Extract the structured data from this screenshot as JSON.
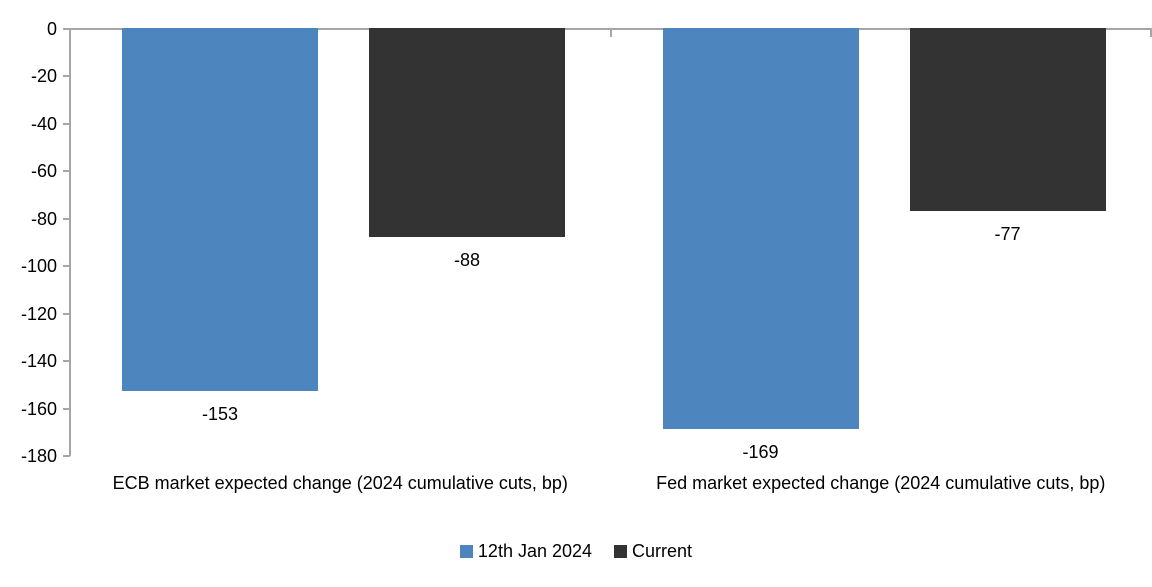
{
  "chart_data": {
    "type": "bar",
    "title": "",
    "categories": [
      "ECB market expected change (2024 cumulative cuts, bp)",
      "Fed market expected change (2024 cumulative cuts, bp)"
    ],
    "series": [
      {
        "name": "12th Jan 2024",
        "color": "#4D86BE",
        "values": [
          -153,
          -169
        ]
      },
      {
        "name": "Current",
        "color": "#333333",
        "values": [
          -88,
          -77
        ]
      }
    ],
    "data_labels": [
      "-153",
      "-169",
      "-88",
      "-77"
    ],
    "yaxis": {
      "min": -180,
      "max": 0,
      "step": 20,
      "tick_labels": [
        "0",
        "-20",
        "-40",
        "-60",
        "-80",
        "-100",
        "-120",
        "-140",
        "-160",
        "-180"
      ]
    },
    "xlabel": "",
    "ylabel": "",
    "grid": false,
    "legend_position": "bottom",
    "axis_color": "#A6A6A6",
    "text_color": "#000000",
    "background_color": "#FFFFFF"
  }
}
